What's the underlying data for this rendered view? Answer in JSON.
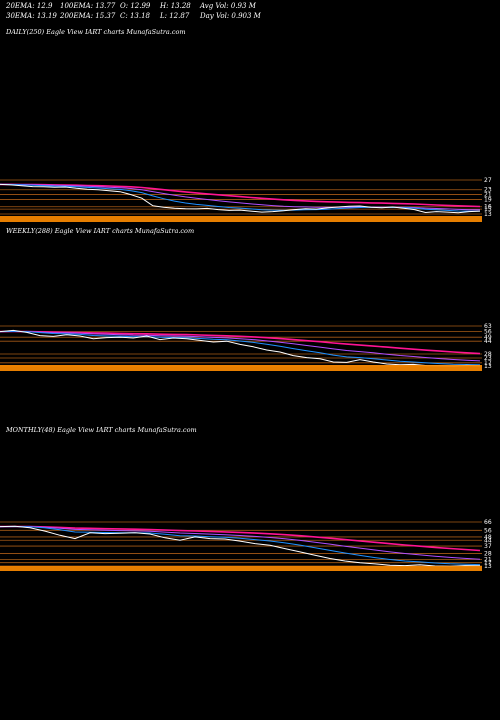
{
  "header": {
    "ema20": "20EMA: 12.9",
    "ema100": "100EMA: 13.77",
    "open": "O: 12.99",
    "high": "H: 13.28",
    "avg_vol": "Avg Vol: 0.93 M",
    "ema30": "30EMA: 13.19",
    "ema200": "200EMA: 15.37",
    "close": "C: 13.18",
    "low": "L: 12.87",
    "day_vol": "Day Vol: 0.903 M"
  },
  "colors": {
    "background": "#000000",
    "price": "#ffffff",
    "ema_short": "#1e90ff",
    "ema_long": "#ff1493",
    "level_line": "#c46a1a",
    "volume": "#ff8c00"
  },
  "chart_data": [
    {
      "type": "line",
      "title": "DAILY(250) Eagle   View  IART charts MunafaSutra.com",
      "price_levels": [
        "27",
        "23",
        "21",
        "19",
        "16",
        "15",
        "13"
      ],
      "price": [
        25.2,
        25.0,
        24.6,
        24.3,
        24.2,
        24.0,
        24.1,
        23.6,
        23.2,
        23.0,
        22.6,
        22.2,
        21.0,
        19.5,
        16.4,
        15.8,
        15.4,
        15.2,
        15.1,
        15.3,
        14.8,
        14.5,
        14.6,
        14.2,
        13.8,
        14.0,
        14.3,
        14.8,
        15.2,
        15.0,
        15.5,
        15.9,
        16.2,
        16.3,
        15.8,
        15.6,
        15.9,
        15.4,
        14.8,
        13.6,
        14.0,
        13.8,
        13.5,
        14.0,
        14.2
      ]
    },
    {
      "type": "line",
      "title": "WEEKLY(288) Eagle   View  IART charts MunafaSutra.com",
      "price_levels": [
        "63",
        "56",
        "49",
        "44",
        "28",
        "23",
        "17",
        "13"
      ],
      "price": [
        56.0,
        57.5,
        55.0,
        51.0,
        50.0,
        52.0,
        50.5,
        47.0,
        48.5,
        49.0,
        48.0,
        50.5,
        46.0,
        48.0,
        47.0,
        45.0,
        43.0,
        44.0,
        40.0,
        37.0,
        33.0,
        30.5,
        26.0,
        23.5,
        22.0,
        18.0,
        17.5,
        21.0,
        18.0,
        15.5,
        14.5,
        15.0,
        13.5,
        13.2,
        13.0,
        13.8,
        13.2
      ]
    },
    {
      "type": "line",
      "title": "MONTHLY(48) Eagle   View  IART charts MunafaSutra.com",
      "price_levels": [
        "66",
        "56",
        "48",
        "44",
        "37",
        "28",
        "21",
        "17",
        "13"
      ],
      "price": [
        60.5,
        61.0,
        59.0,
        55.0,
        50.0,
        46.0,
        53.0,
        52.0,
        52.5,
        53.0,
        51.5,
        47.0,
        44.0,
        48.0,
        46.0,
        45.5,
        43.0,
        40.0,
        38.0,
        34.0,
        30.0,
        26.0,
        22.0,
        19.0,
        17.0,
        15.5,
        14.0,
        13.5,
        14.5,
        13.0,
        12.8,
        13.5,
        13.2
      ]
    }
  ]
}
